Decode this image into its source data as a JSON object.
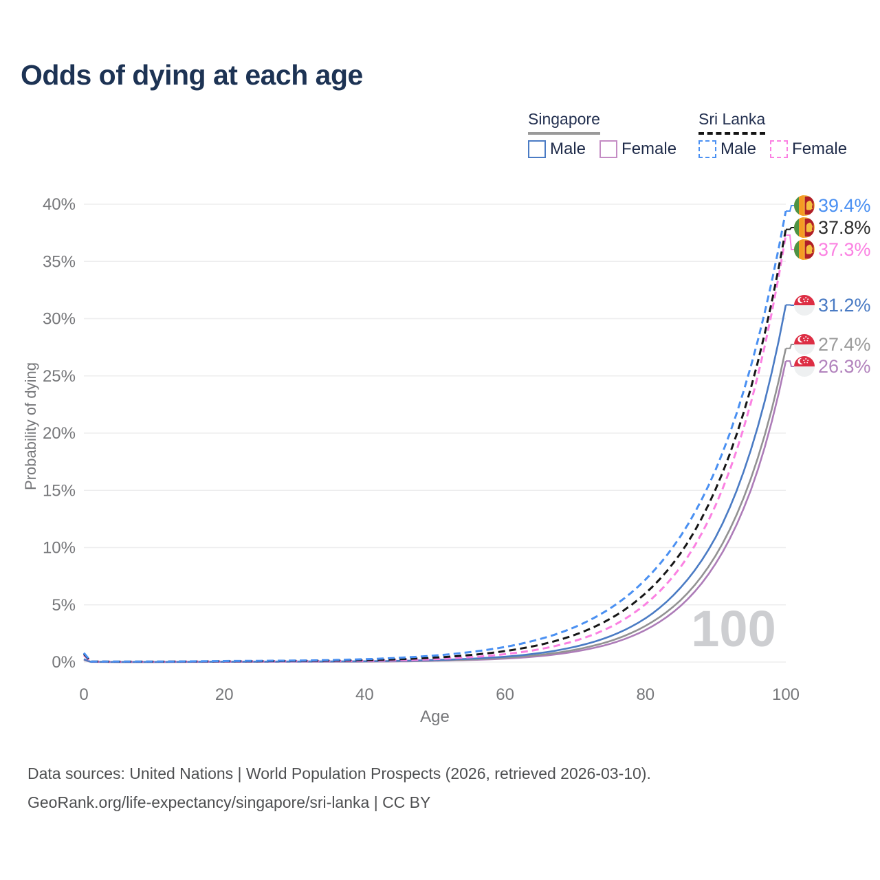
{
  "title": "Odds of dying at each age",
  "legend": {
    "groups": [
      {
        "country": "Singapore",
        "line_style": "solid",
        "underline_color": "#9a9a9a",
        "items": [
          {
            "label": "Male",
            "color": "#4a7bc4",
            "dashed": false
          },
          {
            "label": "Female",
            "color": "#c48cc4",
            "dashed": false
          }
        ]
      },
      {
        "country": "Sri Lanka",
        "line_style": "dashed",
        "underline_color": "#141414",
        "items": [
          {
            "label": "Male",
            "color": "#4a90f2",
            "dashed": true
          },
          {
            "label": "Female",
            "color": "#fb81e2",
            "dashed": true
          }
        ]
      }
    ]
  },
  "watermark": "100",
  "footer": {
    "line1": "Data sources: United Nations | World Population Prospects (2026, retrieved 2026-03-10).",
    "line2": "GeoRank.org/life-expectancy/singapore/sri-lanka | CC BY"
  },
  "chart_data": {
    "type": "line",
    "title": "Odds of dying at each age",
    "xlabel": "Age",
    "ylabel": "Probability of dying",
    "xlim": [
      0,
      100
    ],
    "ylim": [
      0,
      40
    ],
    "x_ticks": [
      0,
      20,
      40,
      60,
      80,
      100
    ],
    "y_ticks": [
      0,
      5,
      10,
      15,
      20,
      25,
      30,
      35,
      40
    ],
    "y_tick_suffix": "%",
    "grid": true,
    "legend_position": "top-right",
    "ages": [
      0,
      1,
      5,
      10,
      15,
      20,
      25,
      30,
      35,
      40,
      45,
      50,
      55,
      60,
      65,
      70,
      75,
      80,
      85,
      90,
      95,
      100
    ],
    "series": [
      {
        "name": "Sri Lanka Male",
        "country": "Sri Lanka",
        "sex": "Male",
        "flag": "sri-lanka",
        "color": "#4a90f2",
        "dashed": true,
        "values": [
          0.8,
          0.05,
          0.04,
          0.04,
          0.06,
          0.09,
          0.11,
          0.13,
          0.17,
          0.25,
          0.38,
          0.57,
          0.87,
          1.32,
          2.01,
          3.07,
          4.7,
          7.2,
          11.0,
          16.8,
          25.8,
          39.4
        ],
        "end_value": 39.4,
        "end_label": "39.4%",
        "label_color": "#4a90f2"
      },
      {
        "name": "Sri Lanka Both Sexes",
        "country": "Sri Lanka",
        "sex": "Both",
        "flag": "sri-lanka",
        "color": "#161616",
        "dashed": true,
        "values": [
          0.7,
          0.045,
          0.035,
          0.035,
          0.05,
          0.07,
          0.08,
          0.1,
          0.12,
          0.16,
          0.25,
          0.39,
          0.61,
          0.96,
          1.51,
          2.39,
          3.79,
          6.0,
          9.5,
          15.1,
          23.9,
          37.8
        ],
        "end_value": 37.8,
        "end_label": "37.8%",
        "label_color": "#2b2b2b"
      },
      {
        "name": "Sri Lanka Female",
        "country": "Sri Lanka",
        "sex": "Female",
        "flag": "sri-lanka",
        "color": "#fb81e2",
        "dashed": true,
        "values": [
          0.6,
          0.04,
          0.03,
          0.03,
          0.04,
          0.05,
          0.06,
          0.07,
          0.08,
          0.1,
          0.16,
          0.26,
          0.42,
          0.69,
          1.13,
          1.86,
          3.06,
          5.05,
          8.3,
          13.7,
          22.6,
          37.3
        ],
        "end_value": 37.3,
        "end_label": "37.3%",
        "label_color": "#fb81e2"
      },
      {
        "name": "Singapore Male",
        "country": "Singapore",
        "sex": "Male",
        "flag": "singapore",
        "color": "#4a7bc4",
        "dashed": false,
        "values": [
          0.25,
          0.02,
          0.012,
          0.012,
          0.02,
          0.03,
          0.04,
          0.05,
          0.055,
          0.07,
          0.11,
          0.18,
          0.29,
          0.47,
          0.79,
          1.34,
          2.26,
          3.82,
          6.5,
          10.9,
          18.5,
          31.2
        ],
        "end_value": 31.2,
        "end_label": "31.2%",
        "label_color": "#4a7bc4"
      },
      {
        "name": "Singapore Both Sexes",
        "country": "Singapore",
        "sex": "Both",
        "flag": "singapore",
        "color": "#929292",
        "dashed": false,
        "values": [
          0.22,
          0.018,
          0.01,
          0.01,
          0.016,
          0.024,
          0.03,
          0.04,
          0.045,
          0.055,
          0.08,
          0.14,
          0.22,
          0.38,
          0.63,
          1.08,
          1.84,
          3.16,
          5.4,
          9.3,
          16.0,
          27.4
        ],
        "end_value": 27.4,
        "end_label": "27.4%",
        "label_color": "#9b9b9b"
      },
      {
        "name": "Singapore Female",
        "country": "Singapore",
        "sex": "Female",
        "flag": "singapore",
        "color": "#ad7cb8",
        "dashed": false,
        "values": [
          0.18,
          0.015,
          0.009,
          0.009,
          0.012,
          0.018,
          0.024,
          0.03,
          0.035,
          0.04,
          0.06,
          0.11,
          0.18,
          0.3,
          0.52,
          0.92,
          1.6,
          2.8,
          4.9,
          8.6,
          15.0,
          26.3
        ],
        "end_value": 26.3,
        "end_label": "26.3%",
        "label_color": "#b283bd"
      }
    ]
  }
}
